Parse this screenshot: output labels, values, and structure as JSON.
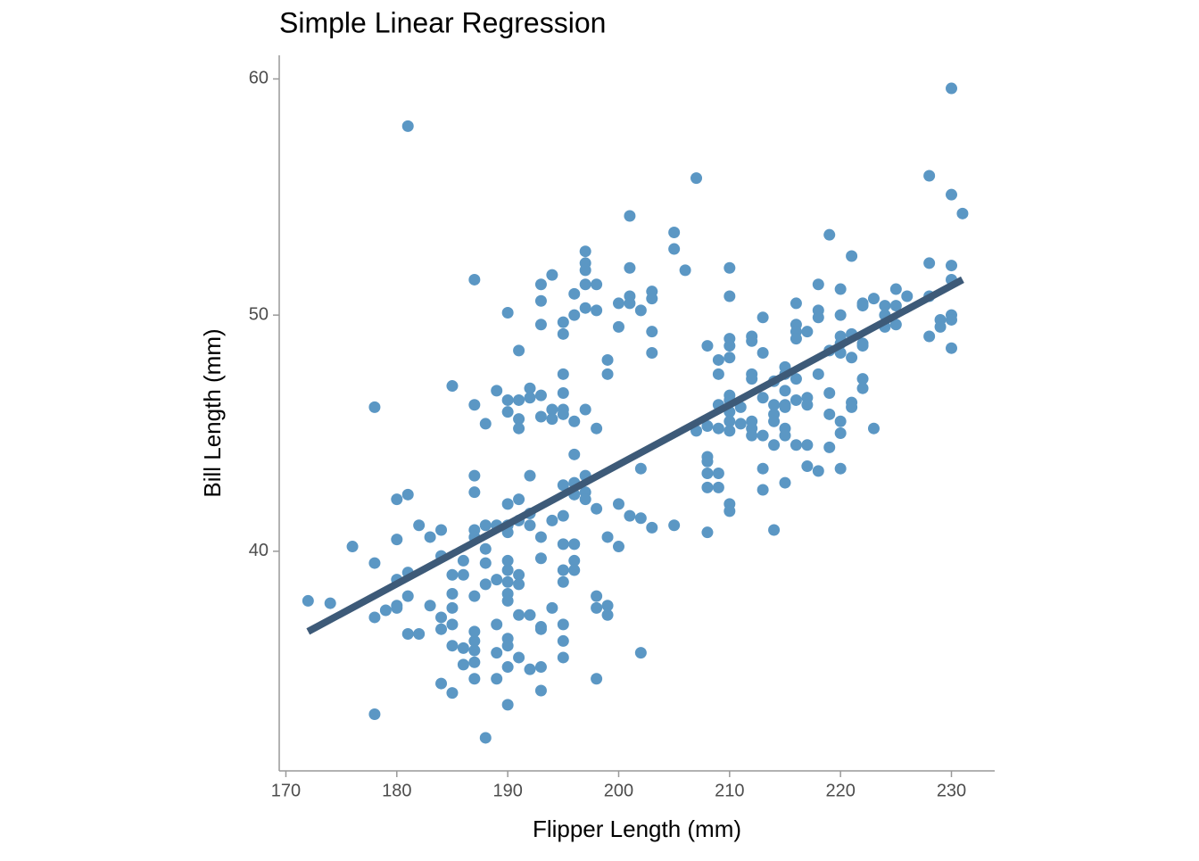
{
  "chart_data": {
    "type": "scatter",
    "title": "Simple Linear Regression",
    "x_label": "Flipper Length (mm)",
    "y_label": "Bill Length (mm)",
    "xlim": [
      169.4,
      233.9
    ],
    "ylim": [
      30.7,
      61
    ],
    "xticks": [
      170,
      180,
      190,
      200,
      210,
      220,
      230
    ],
    "yticks": [
      40,
      50,
      60
    ],
    "series": [
      {
        "type": "scatter",
        "color": "#5b97c4",
        "x": [
          172,
          174,
          176,
          178,
          178,
          178,
          178,
          179,
          180,
          180,
          180,
          180,
          180,
          181,
          181,
          181,
          181,
          181,
          182,
          182,
          183,
          183,
          184,
          184,
          184,
          184,
          184,
          185,
          185,
          185,
          185,
          185,
          185,
          185,
          186,
          186,
          186,
          186,
          187,
          187,
          187,
          187,
          187,
          187,
          187,
          187,
          187,
          187,
          187,
          187,
          188,
          188,
          188,
          188,
          188,
          188,
          189,
          189,
          189,
          189,
          189,
          189,
          190,
          190,
          190,
          190,
          190,
          190,
          190,
          190,
          190,
          190,
          190,
          190,
          190,
          190,
          190,
          191,
          191,
          191,
          191,
          191,
          191,
          191,
          191,
          191,
          191,
          192,
          192,
          192,
          192,
          192,
          192,
          192,
          193,
          193,
          193,
          193,
          193,
          193,
          193,
          193,
          193,
          193,
          193,
          194,
          194,
          194,
          194,
          194,
          195,
          195,
          195,
          195,
          195,
          195,
          195,
          195,
          195,
          195,
          195,
          195,
          195,
          195,
          196,
          196,
          196,
          196,
          196,
          196,
          196,
          196,
          196,
          197,
          197,
          197,
          197,
          197,
          197,
          197,
          197,
          197,
          198,
          198,
          198,
          198,
          198,
          198,
          198,
          199,
          199,
          199,
          199,
          199,
          200,
          200,
          200,
          200,
          201,
          201,
          201,
          201,
          201,
          202,
          202,
          202,
          202,
          203,
          203,
          203,
          203,
          203,
          205,
          205,
          205,
          206,
          207,
          207,
          208,
          208,
          208,
          208,
          208,
          208,
          208,
          209,
          209,
          209,
          209,
          209,
          209,
          210,
          210,
          210,
          210,
          210,
          210,
          210,
          210,
          210,
          210,
          210,
          210,
          211,
          211,
          212,
          212,
          212,
          212,
          212,
          212,
          212,
          213,
          213,
          213,
          213,
          213,
          213,
          214,
          214,
          214,
          214,
          214,
          214,
          215,
          215,
          215,
          215,
          215,
          215,
          215,
          215,
          216,
          216,
          216,
          216,
          216,
          216,
          216,
          217,
          217,
          217,
          217,
          217,
          218,
          218,
          218,
          218,
          218,
          219,
          219,
          219,
          219,
          219,
          220,
          220,
          220,
          220,
          220,
          220,
          220,
          220,
          221,
          221,
          221,
          221,
          221,
          222,
          222,
          222,
          222,
          222,
          222,
          223,
          223,
          224,
          224,
          224,
          225,
          225,
          225,
          226,
          228,
          228,
          228,
          228,
          229,
          229,
          230,
          230,
          230,
          230,
          230,
          230,
          230,
          231
        ],
        "values": [
          37.9,
          37.8,
          40.2,
          46.1,
          39.5,
          37.2,
          33.1,
          37.5,
          42.2,
          40.5,
          38.8,
          37.7,
          37.6,
          58.0,
          42.4,
          39.1,
          38.1,
          36.5,
          41.1,
          36.5,
          40.6,
          37.7,
          40.9,
          39.8,
          37.2,
          36.7,
          34.4,
          47.0,
          39.0,
          38.2,
          37.6,
          36.9,
          36.0,
          34.0,
          39.6,
          39.0,
          35.9,
          35.2,
          51.5,
          46.2,
          43.2,
          42.5,
          40.9,
          40.6,
          38.1,
          36.6,
          36.2,
          35.8,
          35.3,
          34.6,
          45.4,
          41.1,
          40.1,
          39.5,
          38.6,
          32.1,
          46.8,
          41.1,
          38.8,
          36.9,
          35.7,
          34.6,
          50.1,
          46.4,
          45.9,
          42.0,
          41.1,
          40.8,
          39.6,
          39.2,
          38.7,
          38.2,
          37.9,
          36.3,
          36.0,
          35.1,
          33.5,
          48.5,
          46.4,
          45.6,
          45.2,
          42.2,
          41.3,
          39.0,
          38.6,
          37.3,
          35.5,
          46.9,
          46.5,
          43.2,
          41.6,
          41.1,
          37.3,
          35.0,
          51.3,
          50.6,
          49.6,
          46.6,
          45.7,
          40.6,
          39.7,
          36.8,
          36.7,
          35.1,
          34.1,
          51.7,
          46.0,
          45.6,
          41.3,
          37.6,
          49.7,
          49.2,
          47.5,
          46.7,
          46.0,
          45.8,
          42.8,
          41.5,
          40.3,
          39.2,
          38.7,
          36.9,
          36.2,
          35.5,
          50.9,
          50.0,
          45.5,
          44.1,
          42.9,
          42.4,
          40.3,
          39.6,
          39.2,
          52.7,
          52.2,
          51.9,
          51.3,
          50.3,
          46.0,
          43.2,
          42.5,
          42.2,
          51.3,
          50.2,
          45.2,
          41.8,
          38.1,
          37.6,
          34.6,
          48.1,
          47.5,
          40.6,
          37.7,
          37.3,
          50.5,
          49.5,
          42.0,
          40.2,
          54.2,
          52.0,
          50.8,
          50.5,
          41.5,
          50.2,
          43.5,
          41.4,
          35.7,
          51.0,
          50.7,
          49.3,
          48.4,
          41.0,
          53.5,
          52.8,
          41.1,
          51.9,
          55.8,
          45.1,
          48.7,
          45.3,
          44.0,
          43.8,
          43.3,
          42.7,
          40.8,
          48.1,
          47.5,
          46.2,
          45.2,
          43.3,
          42.7,
          52.0,
          50.8,
          49.0,
          48.7,
          48.2,
          46.6,
          46.4,
          45.9,
          45.5,
          45.1,
          42.0,
          41.7,
          46.1,
          45.4,
          49.1,
          48.9,
          47.5,
          47.3,
          45.5,
          45.2,
          44.9,
          49.9,
          48.4,
          46.5,
          44.9,
          43.5,
          42.6,
          47.2,
          46.2,
          45.8,
          45.5,
          44.5,
          40.9,
          47.8,
          47.5,
          46.8,
          46.2,
          46.1,
          45.2,
          44.9,
          42.9,
          50.5,
          49.6,
          49.3,
          49.0,
          47.3,
          46.4,
          44.5,
          49.3,
          46.5,
          46.2,
          44.5,
          43.6,
          51.3,
          50.2,
          49.9,
          47.5,
          43.4,
          53.4,
          48.5,
          46.7,
          45.8,
          44.4,
          51.1,
          50.0,
          49.1,
          48.8,
          48.4,
          45.5,
          45.0,
          43.5,
          52.5,
          49.2,
          48.2,
          46.3,
          46.1,
          50.5,
          50.4,
          48.8,
          48.7,
          47.3,
          46.9,
          50.7,
          45.2,
          50.4,
          50.0,
          49.5,
          51.1,
          50.4,
          49.6,
          50.8,
          55.9,
          52.2,
          50.8,
          49.1,
          49.8,
          49.5,
          59.6,
          55.1,
          52.1,
          51.5,
          50.0,
          49.8,
          48.6,
          54.3
        ]
      },
      {
        "type": "line",
        "color": "#3d5a78",
        "x": [
          172,
          231
        ],
        "values": [
          36.6,
          51.5
        ]
      }
    ]
  }
}
